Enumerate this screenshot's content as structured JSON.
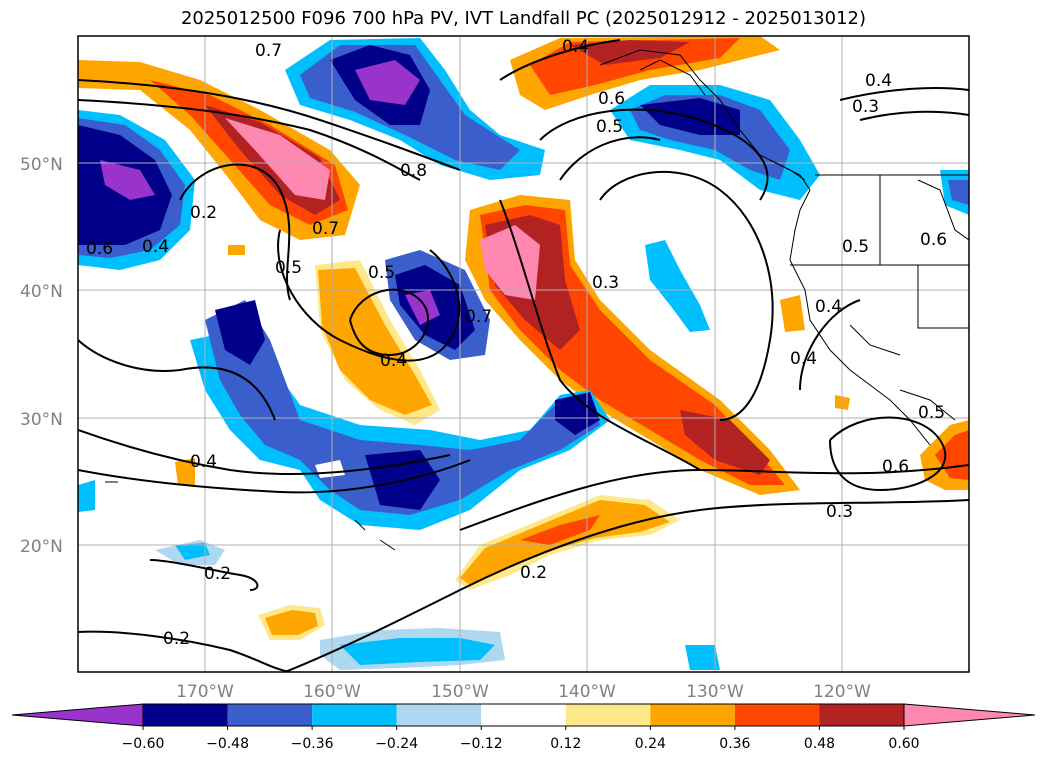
{
  "title": "2025012500 F096 700 hPa PV, IVT Landfall PC (2025012912 - 2025013012)",
  "map": {
    "lat_labels": [
      "50°N",
      "40°N",
      "30°N",
      "20°N"
    ],
    "lon_labels": [
      "170°W",
      "160°W",
      "150°W",
      "140°W",
      "130°W",
      "120°W"
    ],
    "contour_labels": [
      "0.7",
      "0.4",
      "0.4",
      "0.6",
      "0.5",
      "0.3",
      "0.2",
      "0.5",
      "0.8",
      "0.7",
      "0.5",
      "0.4",
      "0.7",
      "0.3",
      "0.4",
      "0.4",
      "0.5",
      "0.6",
      "0.6",
      "0.5",
      "0.3",
      "0.2",
      "0.4",
      "0.2",
      "0.2",
      "0.6",
      "0.4"
    ]
  },
  "colorbar": {
    "levels": [
      "−0.60",
      "−0.48",
      "−0.36",
      "−0.24",
      "−0.12",
      "0.12",
      "0.24",
      "0.36",
      "0.48",
      "0.60"
    ],
    "colors": [
      "#9933cc",
      "#00008b",
      "#3a5fcd",
      "#00bfff",
      "#add8f0",
      "#ffffff",
      "#fde98a",
      "#ffa500",
      "#ff4500",
      "#b22222",
      "#ff88b0"
    ]
  }
}
